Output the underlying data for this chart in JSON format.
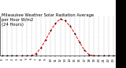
{
  "title": "Milwaukee Weather Solar Radiation Average\nper Hour W/m2\n(24 Hours)",
  "hours": [
    0,
    1,
    2,
    3,
    4,
    5,
    6,
    7,
    8,
    9,
    10,
    11,
    12,
    13,
    14,
    15,
    16,
    17,
    18,
    19,
    20,
    21,
    22,
    23
  ],
  "values": [
    0,
    0,
    0,
    0,
    0,
    0,
    2,
    25,
    90,
    185,
    285,
    370,
    420,
    400,
    340,
    255,
    155,
    65,
    10,
    1,
    0,
    0,
    0,
    0
  ],
  "line_color": "#ff0000",
  "bg_color": "#ffffff",
  "grid_color": "#999999",
  "title_color": "#000000",
  "title_fontsize": 3.8,
  "tick_fontsize": 2.8,
  "ylim": [
    0,
    450
  ],
  "xlim": [
    -0.5,
    23.5
  ],
  "right_panel_color": "#000000",
  "right_panel_text_color": "#ffffff",
  "ytick_values": [
    0,
    50,
    100,
    150,
    200,
    250,
    300,
    350,
    400,
    450
  ],
  "ytick_labels": [
    "0",
    "50",
    "100",
    "150",
    "200",
    "250",
    "300",
    "350",
    "400",
    "450"
  ]
}
